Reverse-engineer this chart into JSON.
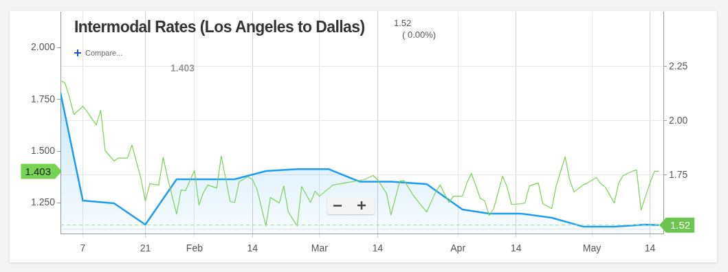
{
  "chart_data": {
    "type": "line",
    "title": "Intermodal Rates (Los Angeles to Dallas)",
    "annotations": [
      "1.52",
      "( 0.00%)",
      "Compare...",
      "1.403",
      "1.403"
    ],
    "series": [
      {
        "color": "#77d353",
        "axis": "y",
        "x": [
          "--01-02",
          "--01-03",
          "--01-04",
          "--01-05",
          "--01-07",
          "--01-08",
          "--01-10",
          "--01-11",
          "--01-12",
          "--01-14",
          "--01-15",
          "--01-17",
          "--01-18",
          "--01-20",
          "--01-21",
          "--01-22",
          "--01-24",
          "--01-25",
          "--01-26",
          "--01-28",
          "--01-29",
          "--01-30",
          "--02-01",
          "--02-02",
          "--02-03",
          "--02-04",
          "--02-06",
          "--02-07",
          "--02-09",
          "--02-10",
          "--02-11",
          "--02-13",
          "--02-14",
          "--02-15",
          "--02-17",
          "--02-18",
          "--02-20",
          "--02-21",
          "--02-22",
          "--02-24",
          "--02-25",
          "--02-27",
          "--02-28",
          "--03-01",
          "--03-04",
          "--03-11",
          "--03-13",
          "--03-14",
          "--03-16",
          "--03-17",
          "--03-19",
          "--03-20",
          "--03-22",
          "--03-24",
          "--03-25",
          "--03-27",
          "--03-28",
          "--03-30",
          "--03-31",
          "--04-02",
          "--04-03",
          "--04-04",
          "--04-06",
          "--04-07",
          "--04-08",
          "--04-09",
          "--04-11",
          "--04-12",
          "--04-13",
          "--04-15",
          "--04-16",
          "--04-17",
          "--04-19",
          "--04-20",
          "--04-22",
          "--04-23",
          "--04-25",
          "--04-26",
          "--04-27",
          "--04-29",
          "--04-30",
          "--05-02",
          "--05-03",
          "--05-04",
          "--05-06",
          "--05-07",
          "--05-08",
          "--05-10",
          "--05-11",
          "--05-12",
          "--05-14",
          "--05-15",
          "--05-16"
        ],
        "values": [
          1.84,
          1.83,
          1.76,
          1.677,
          1.717,
          1.69,
          1.627,
          1.697,
          1.503,
          1.453,
          1.467,
          1.467,
          1.53,
          1.37,
          1.26,
          1.343,
          1.337,
          1.47,
          1.37,
          1.197,
          1.313,
          1.31,
          1.407,
          1.24,
          1.3,
          1.337,
          1.323,
          1.477,
          1.257,
          1.253,
          1.353,
          1.377,
          1.363,
          1.317,
          1.14,
          1.277,
          1.25,
          1.333,
          1.207,
          1.14,
          1.33,
          1.253,
          1.307,
          1.283,
          1.337,
          1.363,
          1.383,
          1.363,
          1.297,
          1.193,
          1.357,
          1.357,
          1.287,
          1.233,
          1.207,
          1.303,
          1.337,
          1.253,
          1.283,
          1.283,
          1.347,
          1.393,
          1.273,
          1.26,
          1.19,
          1.223,
          1.38,
          1.327,
          1.243,
          1.247,
          1.25,
          1.333,
          1.347,
          1.247,
          1.223,
          1.333,
          1.473,
          1.363,
          1.303,
          1.337,
          1.347,
          1.373,
          1.343,
          1.327,
          1.25,
          1.347,
          1.383,
          1.403,
          1.41,
          1.217,
          1.347,
          1.403,
          1.403
        ]
      },
      {
        "type": "area",
        "color": "#1a9cf0",
        "axis": "y2",
        "x": [
          "--01-02",
          "--01-07",
          "--01-14",
          "--01-21",
          "--01-28",
          "--02-10",
          "--02-17",
          "--02-24",
          "--03-03",
          "--03-10",
          "--03-17",
          "--03-25",
          "--04-02",
          "--04-08",
          "--04-15",
          "--04-22",
          "--04-29",
          "--05-06",
          "--05-13",
          "--05-16"
        ],
        "values": [
          2.13,
          1.633,
          1.62,
          1.522,
          1.731,
          1.731,
          1.769,
          1.778,
          1.778,
          1.72,
          1.72,
          1.709,
          1.592,
          1.573,
          1.573,
          1.554,
          1.513,
          1.513,
          1.522,
          1.52
        ]
      }
    ],
    "xlim": [
      "--01-02",
      "--05-17"
    ],
    "xticks": [
      {
        "value": "--01-07",
        "label": "7"
      },
      {
        "value": "--01-21",
        "label": "21"
      },
      {
        "value": "--02-01",
        "label": "Feb"
      },
      {
        "value": "--02-14",
        "label": "14"
      },
      {
        "value": "--03-01",
        "label": "Mar"
      },
      {
        "value": "--03-14",
        "label": "14"
      },
      {
        "value": "--04-01",
        "label": "Apr"
      },
      {
        "value": "--04-14",
        "label": "14"
      },
      {
        "value": "--05-01",
        "label": "May"
      },
      {
        "value": "--05-14",
        "label": "14"
      }
    ],
    "ylim": [
      1.103,
      2.173
    ],
    "yticks": [
      {
        "value": 1.25,
        "label": "1.250"
      },
      {
        "value": 1.5,
        "label": "1.500"
      },
      {
        "value": 1.75,
        "label": "1.750"
      },
      {
        "value": 2,
        "label": "2.000"
      }
    ],
    "y2lim": [
      1.481,
      2.503
    ],
    "y2ticks": [
      {
        "value": 1.5,
        "label": null
      },
      1.75,
      {
        "value": 2,
        "label": "2.00"
      },
      2.25
    ],
    "ref_lines": [
      {
        "axis": "y2",
        "value": 1.52,
        "label": "1.52",
        "color": "#9fe08a",
        "line_style": "dashed"
      }
    ],
    "grid": true,
    "legend": false,
    "marker": "none",
    "line_style": "solid"
  }
}
